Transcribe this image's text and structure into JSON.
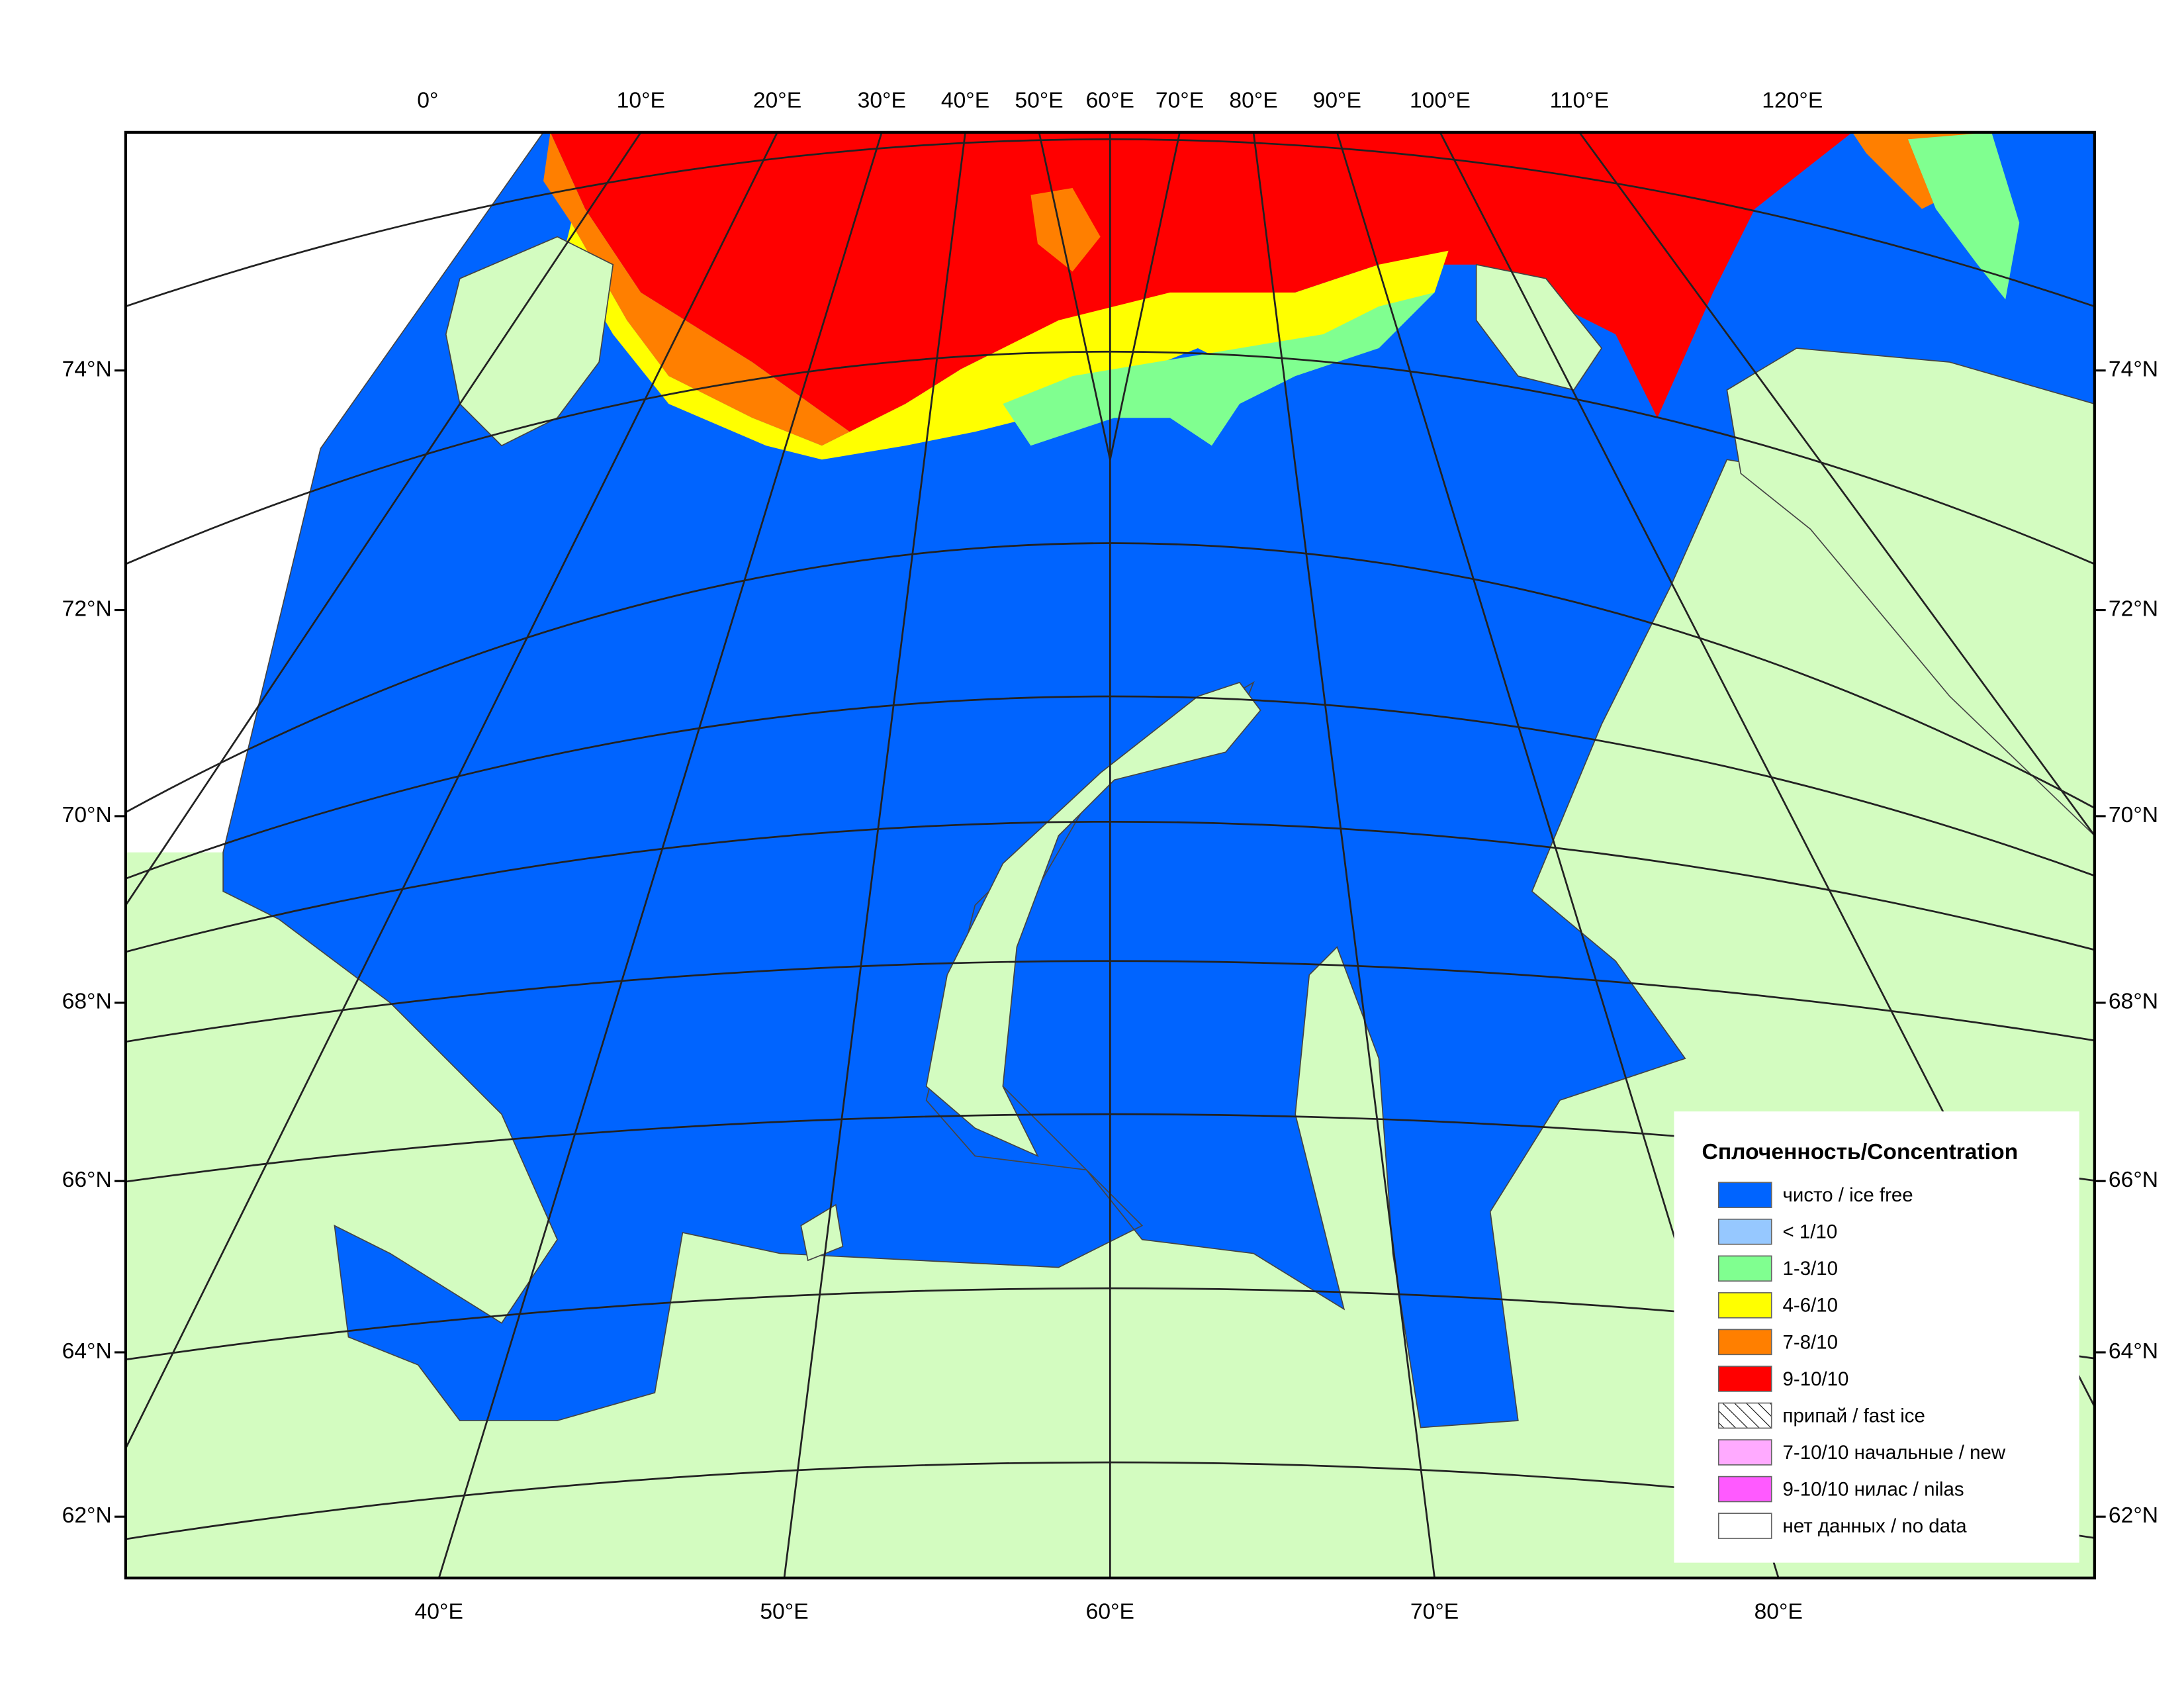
{
  "map": {
    "top_labels": [
      "0°",
      "10°E",
      "20°E",
      "30°E",
      "40°E",
      "50°E",
      "60°E",
      "70°E",
      "80°E",
      "90°E",
      "100°E",
      "110°E",
      "120°E"
    ],
    "left_labels": [
      "74°N",
      "72°N",
      "70°N",
      "68°N",
      "66°N",
      "64°N",
      "62°N"
    ],
    "right_labels": [
      "74°N",
      "72°N",
      "70°N",
      "68°N",
      "66°N",
      "64°N",
      "62°N"
    ],
    "bottom_labels": [
      "40°E",
      "50°E",
      "60°E",
      "70°E",
      "80°E"
    ]
  },
  "legend": {
    "title": "Сплоченность/Concentration",
    "items": [
      {
        "label": "чисто / ice free",
        "color": "#0064ff"
      },
      {
        "label": "< 1/10",
        "color": "#96c8ff"
      },
      {
        "label": "1-3/10",
        "color": "#80ff90"
      },
      {
        "label": "4-6/10",
        "color": "#ffff00"
      },
      {
        "label": "7-8/10",
        "color": "#ff7f00"
      },
      {
        "label": "9-10/10",
        "color": "#ff0000"
      },
      {
        "label": "припай / fast ice",
        "color": "hatch"
      },
      {
        "label": "7-10/10 начальные / new",
        "color": "#ffaaff"
      },
      {
        "label": "9-10/10 нилас / nilas",
        "color": "#ff5aff"
      },
      {
        "label": "нет данных / no data",
        "color": "#ffffff"
      }
    ]
  }
}
